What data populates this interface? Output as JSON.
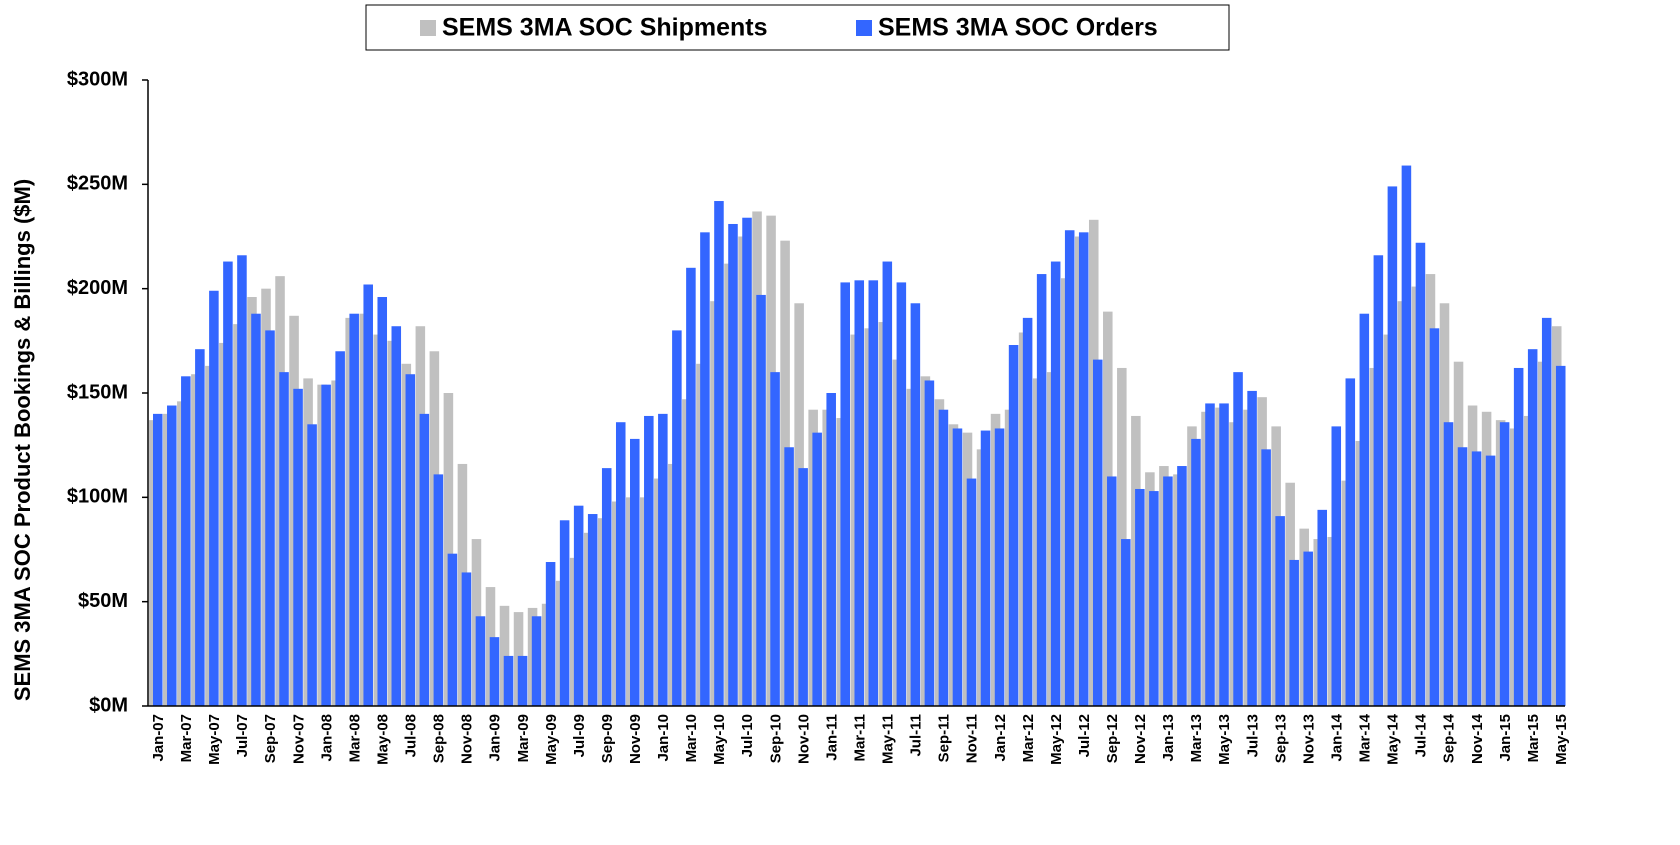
{
  "chart_data": {
    "type": "bar",
    "y_label": "SEMS 3MA SOC Product Bookings & Billings ($M)",
    "categories": [
      "Jan-07",
      null,
      "Mar-07",
      null,
      "May-07",
      null,
      "Jul-07",
      null,
      "Sep-07",
      null,
      "Nov-07",
      null,
      "Jan-08",
      null,
      "Mar-08",
      null,
      "May-08",
      null,
      "Jul-08",
      null,
      "Sep-08",
      null,
      "Nov-08",
      null,
      "Jan-09",
      null,
      "Mar-09",
      null,
      "May-09",
      null,
      "Jul-09",
      null,
      "Sep-09",
      null,
      "Nov-09",
      null,
      "Jan-10",
      null,
      "Mar-10",
      null,
      "May-10",
      null,
      "Jul-10",
      null,
      "Sep-10",
      null,
      "Nov-10",
      null,
      "Jan-11",
      null,
      "Mar-11",
      null,
      "May-11",
      null,
      "Jul-11",
      null,
      "Sep-11",
      null,
      "Nov-11",
      null,
      "Jan-12",
      null,
      "Mar-12",
      null,
      "May-12",
      null,
      "Jul-12",
      null,
      "Sep-12",
      null,
      "Nov-12",
      null,
      "Jan-13",
      null,
      "Mar-13",
      null,
      "May-13",
      null,
      "Jul-13",
      null,
      "Sep-13",
      null,
      "Nov-13",
      null,
      "Jan-14",
      null,
      "Mar-14",
      null,
      "May-14",
      null,
      "Jul-14",
      null,
      "Sep-14",
      null,
      "Nov-14",
      null,
      "Jan-15",
      null,
      "Mar-15",
      null,
      "May-15"
    ],
    "series": [
      {
        "name": "SEMS 3MA SOC Shipments",
        "color": "#c0c0c0",
        "values": [
          137,
          140,
          146,
          159,
          163,
          174,
          183,
          196,
          200,
          206,
          187,
          157,
          154,
          156,
          186,
          188,
          178,
          175,
          164,
          182,
          170,
          150,
          116,
          80,
          57,
          48,
          45,
          47,
          49,
          60,
          71,
          83,
          90,
          98,
          100,
          100,
          109,
          116,
          147,
          164,
          194,
          212,
          225,
          237,
          235,
          223,
          193,
          142,
          142,
          138,
          178,
          181,
          184,
          166,
          152,
          158,
          147,
          135,
          131,
          123,
          140,
          142,
          179,
          157,
          160,
          205,
          225,
          233,
          189,
          162,
          139,
          112,
          115,
          111,
          134,
          141,
          143,
          136,
          142,
          148,
          134,
          107,
          85,
          80,
          81,
          108,
          127,
          162,
          178,
          194,
          201,
          207,
          193,
          165,
          144,
          141,
          137,
          133,
          139,
          165,
          182
        ]
      },
      {
        "name": "SEMS 3MA SOC Orders",
        "color": "#3366ff",
        "values": [
          140,
          144,
          158,
          171,
          199,
          213,
          216,
          188,
          180,
          160,
          152,
          135,
          154,
          170,
          188,
          202,
          196,
          182,
          159,
          140,
          111,
          73,
          64,
          43,
          33,
          24,
          24,
          43,
          69,
          89,
          96,
          92,
          114,
          136,
          128,
          139,
          140,
          180,
          210,
          227,
          242,
          231,
          234,
          197,
          160,
          124,
          114,
          131,
          150,
          203,
          204,
          204,
          213,
          203,
          193,
          156,
          142,
          133,
          109,
          132,
          133,
          173,
          186,
          207,
          213,
          228,
          227,
          166,
          110,
          80,
          104,
          103,
          110,
          115,
          128,
          145,
          145,
          160,
          151,
          123,
          91,
          70,
          74,
          94,
          134,
          157,
          188,
          216,
          249,
          259,
          222,
          181,
          136,
          124,
          122,
          120,
          136,
          162,
          171,
          186,
          163
        ]
      }
    ],
    "ylim": [
      0,
      300
    ],
    "yticks": [
      {
        "value": 0,
        "label": "$0M"
      },
      {
        "value": 50,
        "label": "$50M"
      },
      {
        "value": 100,
        "label": "$100M"
      },
      {
        "value": 150,
        "label": "$150M"
      },
      {
        "value": 200,
        "label": "$200M"
      },
      {
        "value": 250,
        "label": "$250M"
      },
      {
        "value": 300,
        "label": "$300M"
      }
    ],
    "grid": false
  }
}
